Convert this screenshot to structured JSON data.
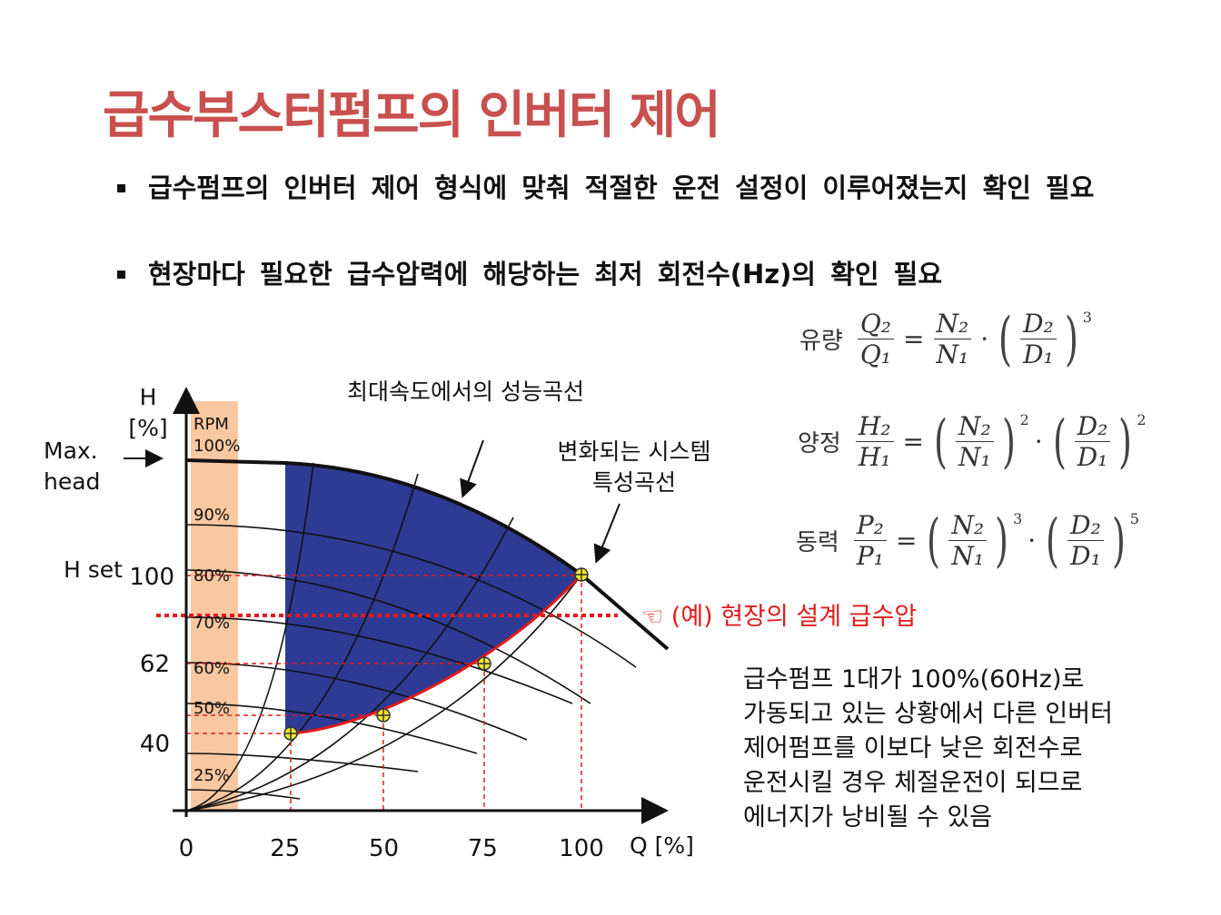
{
  "title": "급수부스터펌프의 인버터 제어",
  "bullets": [
    "급수펌프의 인버터 제어 형식에 맞춰 적절한 운전 설정이 이루어졌는지 확인 필요",
    "현장마다 필요한 급수압력에 해당하는 최저 회전수(Hz)의 확인 필요"
  ],
  "formulas": [
    {
      "label": "유량",
      "lhs_num": "Q₂",
      "lhs_den": "Q₁",
      "n_num": "N₂",
      "n_den": "N₁",
      "d_num": "D₂",
      "d_den": "D₁",
      "d_exp": 3
    },
    {
      "label": "양정",
      "lhs_num": "H₂",
      "lhs_den": "H₁",
      "n_num": "N₂",
      "n_den": "N₁",
      "n_exp": 2,
      "d_num": "D₂",
      "d_den": "D₁",
      "d_exp": 2
    },
    {
      "label": "동력",
      "lhs_num": "P₂",
      "lhs_den": "P₁",
      "n_num": "N₂",
      "n_den": "N₁",
      "n_exp": 3,
      "d_num": "D₂",
      "d_den": "D₁",
      "d_exp": 5
    }
  ],
  "diagram": {
    "y_title": "H",
    "y_unit": "[%]",
    "x_title": "Q [%]",
    "max_head": [
      "Max.",
      "head"
    ],
    "h_set": "H set",
    "y_ticks": [
      100,
      62,
      40
    ],
    "x_ticks": [
      0,
      25,
      50,
      75,
      100
    ],
    "rpm_title": "RPM",
    "rpm_labels": [
      "100%",
      "90%",
      "80%",
      "70%",
      "60%",
      "50%",
      "25%"
    ],
    "curve_label": "최대속도에서의 성능곡선",
    "system_label": [
      "변화되는 시스템",
      "특성곡선"
    ],
    "design_label": "☜ (예) 현장의 설계 급수압"
  },
  "note": [
    "급수펌프 1대가 100%(60Hz)로",
    "가동되고 있는 상황에서 다른 인버터",
    "제어펌프를 이보다 낮은 회전수로",
    "운전시킬 경우 체절운전이 되므로",
    "에너지가 낭비될 수 있음"
  ]
}
